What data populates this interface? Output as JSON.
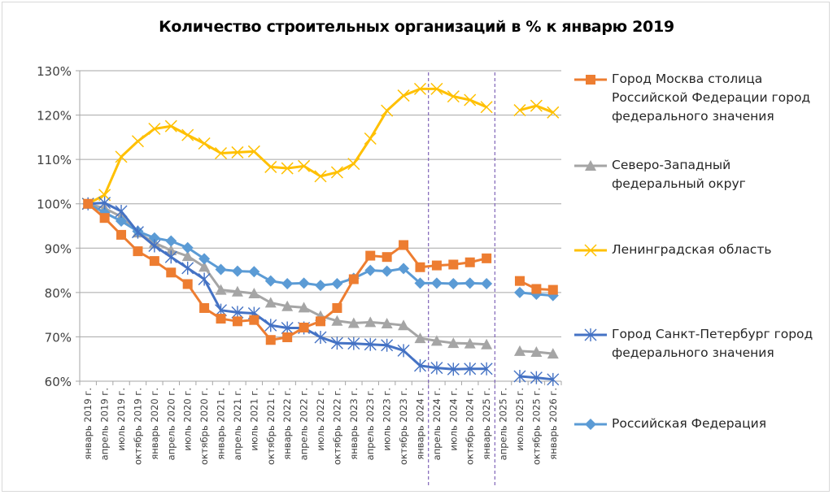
{
  "chart_data": {
    "type": "line",
    "title": "Количество строительных организаций в % к январю 2019",
    "xlabel": "",
    "ylabel": "",
    "ylim": [
      60,
      130
    ],
    "y_ticks": [
      "60%",
      "70%",
      "80%",
      "90%",
      "100%",
      "110%",
      "120%",
      "130%"
    ],
    "y_tick_values": [
      60,
      70,
      80,
      90,
      100,
      110,
      120,
      130
    ],
    "grid": true,
    "legend_position": "right",
    "categories": [
      "январь 2019 г.",
      "апрель 2019 г.",
      "июль 2019 г.",
      "октябрь 2019 г.",
      "январь 2020 г.",
      "апрель 2020 г.",
      "июль 2020 г.",
      "октябрь 2020 г.",
      "январь 2021 г.",
      "апрель 2021 г.",
      "июль 2021 г.",
      "октябрь 2021 г.",
      "январь 2022 г.",
      "апрель 2022 г.",
      "июль 2022 г.",
      "октябрь 2022 г.",
      "январь 2023 г.",
      "апрель 2023 г.",
      "июль 2023 г.",
      "октябрь 2023 г.",
      "январь 2024 г.",
      "апрель 2024 г.",
      "июль 2024 г.",
      "октябрь 2024 г.",
      "январь 2025 г.",
      "апрель 2025 г.",
      "июль 2025 г.",
      "октябрь 2025 г.",
      "январь 2026 г."
    ],
    "annotations": [
      {
        "type": "vertical-dashed-line",
        "between": [
          "январь 2024 г.",
          "апрель 2024 г."
        ]
      },
      {
        "type": "vertical-dashed-line",
        "between": [
          "январь 2025 г.",
          "апрель 2025 г."
        ]
      }
    ],
    "series": [
      {
        "name": "Город Москва столица Российской Федерации город федерального значения",
        "legend_lines": [
          "Город Москва столица",
          "Российской Федерации город",
          "федерального значения"
        ],
        "color": "#ED7D31",
        "marker": "square",
        "values": [
          100,
          96.8,
          93.0,
          89.3,
          87.1,
          84.5,
          81.9,
          76.5,
          74.1,
          73.5,
          73.8,
          69.3,
          69.9,
          72.1,
          73.5,
          76.5,
          83.0,
          88.3,
          88.0,
          90.7,
          85.7,
          86.1,
          86.3,
          86.8,
          87.7,
          null,
          82.6,
          80.8,
          80.6
        ]
      },
      {
        "name": "Северо-Западный федеральный округ",
        "legend_lines": [
          "Северо-Западный",
          "федеральный округ"
        ],
        "color": "#A5A5A5",
        "marker": "triangle",
        "values": [
          100,
          99.0,
          97.1,
          93.5,
          91.2,
          89.5,
          88.2,
          85.8,
          80.6,
          80.2,
          79.8,
          77.7,
          76.9,
          76.6,
          74.7,
          73.6,
          73.1,
          73.3,
          73.0,
          72.6,
          69.7,
          69.1,
          68.6,
          68.5,
          68.3,
          null,
          66.8,
          66.6,
          66.2
        ]
      },
      {
        "name": "Ленинградская область",
        "legend_lines": [
          "Ленинградская область"
        ],
        "color": "#FFC000",
        "marker": "x",
        "values": [
          100,
          102.0,
          110.6,
          114.1,
          116.9,
          117.5,
          115.5,
          113.6,
          111.4,
          111.6,
          111.8,
          108.3,
          108.0,
          108.5,
          106.2,
          107.1,
          109.0,
          114.7,
          121.0,
          124.4,
          125.9,
          125.9,
          124.2,
          123.4,
          121.8,
          null,
          121.1,
          122.1,
          120.6
        ]
      },
      {
        "name": "Город Санкт-Петербург город федерального значения",
        "legend_lines": [
          "Город Санкт-Петербург город",
          "федерального значения"
        ],
        "color": "#4472C4",
        "marker": "star",
        "values": [
          100,
          100.2,
          98.3,
          93.6,
          90.5,
          88.0,
          85.5,
          83.0,
          76.0,
          75.5,
          75.3,
          72.6,
          72.0,
          72.0,
          69.9,
          68.6,
          68.5,
          68.3,
          68.1,
          66.9,
          63.5,
          63.0,
          62.7,
          62.8,
          62.8,
          null,
          61.1,
          60.8,
          60.4
        ]
      },
      {
        "name": "Российская Федерация",
        "legend_lines": [
          "Российская Федерация"
        ],
        "color": "#5B9BD5",
        "marker": "diamond",
        "values": [
          100,
          98.0,
          96.1,
          93.8,
          92.3,
          91.6,
          90.1,
          87.6,
          85.2,
          84.8,
          84.7,
          82.6,
          82.0,
          82.1,
          81.6,
          82.0,
          83.2,
          85.0,
          84.8,
          85.4,
          82.1,
          82.1,
          82.0,
          82.1,
          82.0,
          null,
          80.0,
          79.6,
          79.3
        ]
      }
    ]
  }
}
